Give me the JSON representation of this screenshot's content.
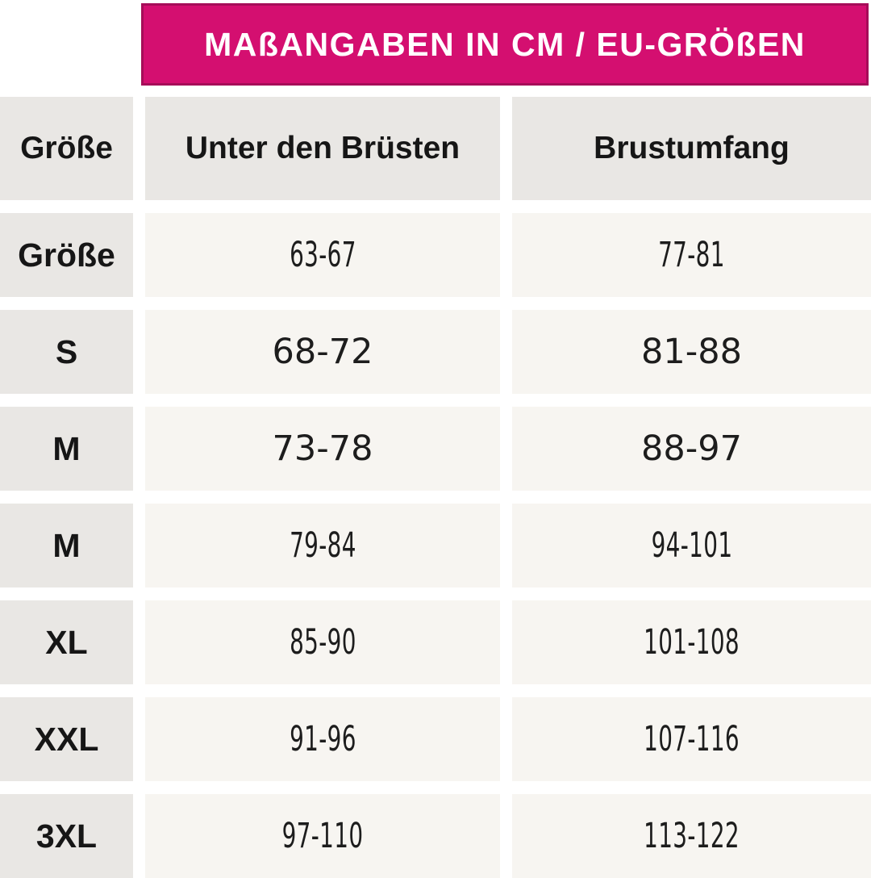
{
  "banner": {
    "title": "MAßANGABEN IN CM / EU-GRÖßEN"
  },
  "table": {
    "headers": {
      "size": "Größe",
      "underbust": "Unter den Brüsten",
      "bust": "Brustumfang"
    },
    "rows": [
      {
        "size": "Größe",
        "underbust": "63-67",
        "bust": "77-81"
      },
      {
        "size": "S",
        "underbust": "68-72",
        "bust": "81-88"
      },
      {
        "size": "M",
        "underbust": "73-78",
        "bust": "88-97"
      },
      {
        "size": "M",
        "underbust": "79-84",
        "bust": "94-101"
      },
      {
        "size": "XL",
        "underbust": "85-90",
        "bust": "101-108"
      },
      {
        "size": "XXL",
        "underbust": "91-96",
        "bust": "107-116"
      },
      {
        "size": "3XL",
        "underbust": "97-110",
        "bust": "113-122"
      }
    ]
  },
  "colors": {
    "banner_bg": "#d40f70",
    "banner_border": "#a60d59",
    "header_bg": "#e9e7e4",
    "cell_bg": "#f7f5f1",
    "text": "#161616"
  }
}
